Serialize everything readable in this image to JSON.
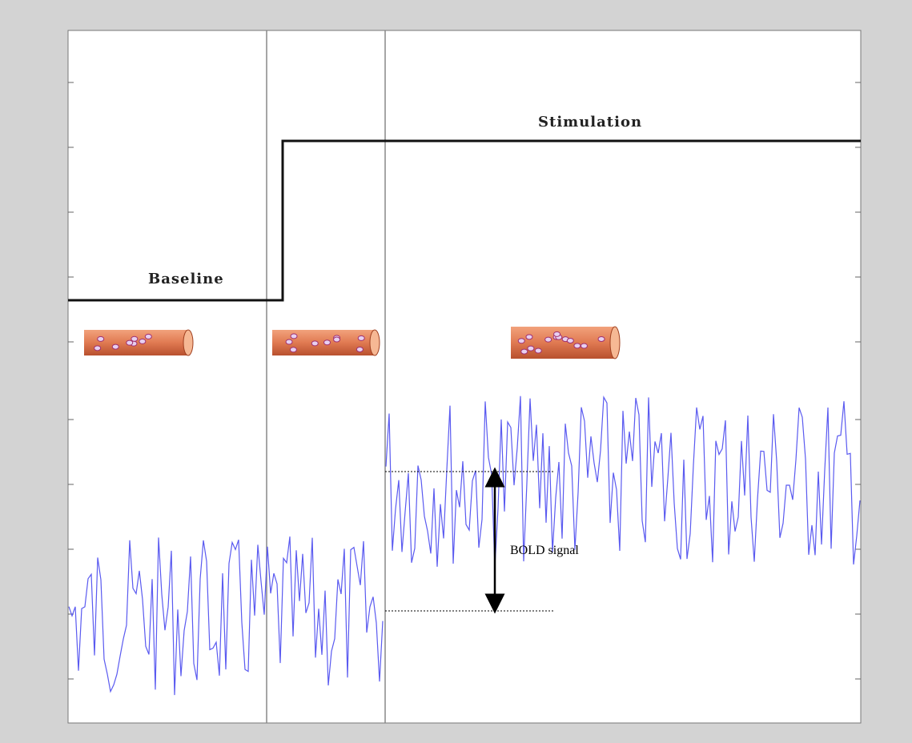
{
  "labels": {
    "baseline": "Baseline",
    "stimulation": "Stimulation",
    "bold_signal": "BOLD signal"
  }
}
